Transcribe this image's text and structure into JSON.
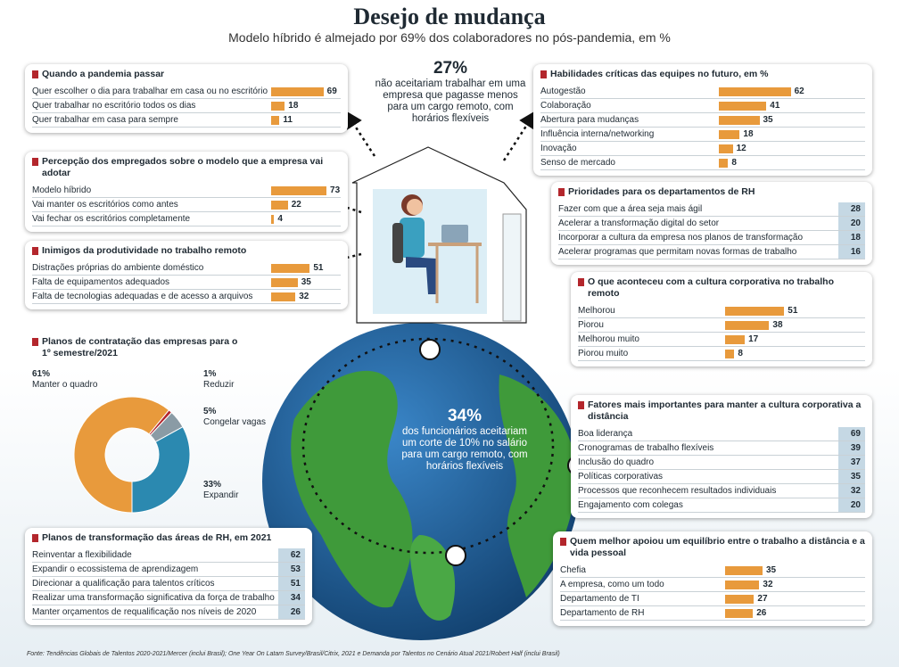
{
  "header": {
    "title": "Desejo de mudança",
    "subtitle": "Modelo híbrido é almejado por 69% dos colaboradores no pós-pandemia, em %"
  },
  "callouts": [
    {
      "value": "27%",
      "text": "não aceitariam trabalhar em uma empresa que pagasse menos para um cargo remoto, com horários flexíveis"
    },
    {
      "value": "34%",
      "text": "dos funcionários aceitariam um corte de 10% no salário para um cargo remoto, com horários flexíveis"
    }
  ],
  "source": "Fonte: Tendências Globais de Talentos 2020-2021/Mercer (inclui Brasil); One Year On Latam Survey/Brasil/Citrix, 2021 e Demanda por Talentos no Cenário Atual 2021/Robert Half (inclui Brasil)",
  "chart_data": [
    {
      "type": "bar",
      "title": "Quando a pandemia passar",
      "categories": [
        "Quer escolher o dia para trabalhar em casa ou no escritório",
        "Quer trabalhar no escritório todos os dias",
        "Quer trabalhar em casa para sempre"
      ],
      "values": [
        69,
        18,
        11
      ],
      "color": "#e89a3c"
    },
    {
      "type": "bar",
      "title": "Percepção dos empregados sobre o modelo que a empresa vai adotar",
      "categories": [
        "Modelo híbrido",
        "Vai manter os escritórios como antes",
        "Vai fechar os escritórios completamente"
      ],
      "values": [
        73,
        22,
        4
      ],
      "color": "#e89a3c"
    },
    {
      "type": "bar",
      "title": "Inimigos da produtividade no trabalho remoto",
      "categories": [
        "Distrações próprias do ambiente doméstico",
        "Falta de equipamentos adequados",
        "Falta de tecnologias adequadas e de acesso a arquivos"
      ],
      "values": [
        51,
        35,
        32
      ],
      "color": "#e89a3c"
    },
    {
      "type": "pie",
      "title": "Planos de contratação das empresas para o 1º semestre/2021",
      "categories": [
        "Manter o quadro",
        "Reduzir",
        "Congelar vagas",
        "Expandir"
      ],
      "values": [
        61,
        1,
        5,
        33
      ],
      "value_labels": [
        "61%",
        "1%",
        "5%",
        "33%"
      ],
      "colors": [
        "#e89a3c",
        "#b3262c",
        "#8a9ba5",
        "#2b89b0"
      ]
    },
    {
      "type": "table",
      "title": "Planos de transformação das áreas de RH, em 2021",
      "categories": [
        "Reinventar a flexibilidade",
        "Expandir o ecossistema de aprendizagem",
        "Direcionar a qualificação para talentos críticos",
        "Realizar uma transformação significativa da força de trabalho",
        "Manter orçamentos de requalificação nos níveis de 2020"
      ],
      "values": [
        62,
        53,
        51,
        34,
        26
      ]
    },
    {
      "type": "bar",
      "title": "Habilidades críticas das equipes no futuro, em %",
      "categories": [
        "Autogestão",
        "Colaboração",
        "Abertura para mudanças",
        "Influência interna/networking",
        "Inovação",
        "Senso de mercado"
      ],
      "values": [
        62,
        41,
        35,
        18,
        12,
        8
      ],
      "color": "#e89a3c"
    },
    {
      "type": "table",
      "title": "Prioridades para os departamentos de RH",
      "categories": [
        "Fazer com que a área seja mais ágil",
        "Acelerar a transformação digital do setor",
        "Incorporar a cultura da empresa nos planos de transformação",
        "Acelerar programas que permitam novas formas de trabalho"
      ],
      "values": [
        28,
        20,
        18,
        16
      ]
    },
    {
      "type": "bar",
      "title": "O que aconteceu com a cultura corporativa no trabalho remoto",
      "categories": [
        "Melhorou",
        "Piorou",
        "Melhorou muito",
        "Piorou muito"
      ],
      "values": [
        51,
        38,
        17,
        8
      ],
      "color": "#e89a3c"
    },
    {
      "type": "table",
      "title": "Fatores mais importantes para manter a cultura corporativa a distância",
      "categories": [
        "Boa liderança",
        "Cronogramas de trabalho flexíveis",
        "Inclusão do quadro",
        "Políticas corporativas",
        "Processos que reconhecem resultados individuais",
        "Engajamento com colegas"
      ],
      "values": [
        69,
        39,
        37,
        35,
        32,
        20
      ]
    },
    {
      "type": "bar",
      "title": "Quem melhor apoiou um equilíbrio entre o trabalho a distância e a vida pessoal",
      "categories": [
        "Chefia",
        "A empresa, como um todo",
        "Departamento de TI",
        "Departamento de RH"
      ],
      "values": [
        35,
        32,
        27,
        26
      ],
      "color": "#e89a3c"
    }
  ]
}
